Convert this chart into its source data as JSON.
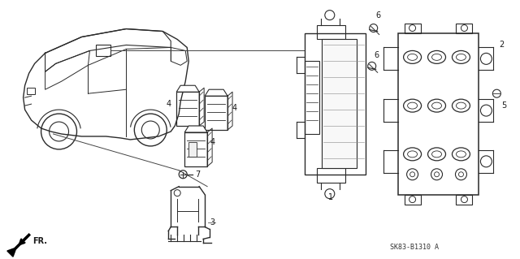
{
  "bg_color": "#ffffff",
  "fig_width": 6.4,
  "fig_height": 3.19,
  "dpi": 100,
  "diagram_code_text": "SK83-B1310 A",
  "line_color": "#2a2a2a",
  "label_color": "#1a1a1a"
}
